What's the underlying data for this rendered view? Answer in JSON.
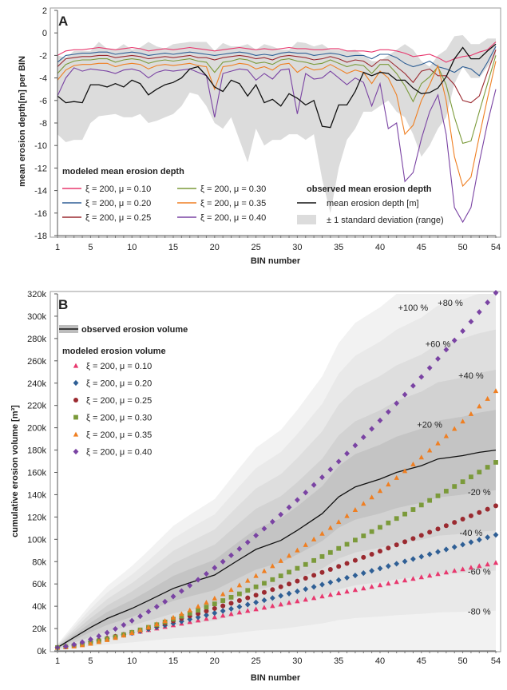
{
  "colors": {
    "mu010": "#e8386e",
    "mu020": "#2f5f95",
    "mu025": "#9b2a30",
    "mu030": "#7b9a3a",
    "mu035": "#ef7f22",
    "mu040": "#7a43a3",
    "observed": "#111111",
    "band": "#dcdcdc"
  },
  "chart_data": [
    {
      "type": "line",
      "panel_label": "A",
      "ylabel": "mean erosion depth[m] per BIN",
      "xlabel": "BIN number",
      "xlim": [
        1,
        54
      ],
      "ylim": [
        -18,
        2
      ],
      "y_ticks": [
        2,
        0,
        -2,
        -4,
        -6,
        -8,
        -10,
        -12,
        -14,
        -16,
        -18
      ],
      "x_ticks": [
        1,
        5,
        10,
        15,
        20,
        25,
        30,
        35,
        40,
        45,
        50,
        54
      ],
      "grid": false,
      "legend": {
        "modeled_title": "modeled mean erosion depth",
        "observed_title": "observed mean erosion depth"
      },
      "x": [
        1,
        2,
        3,
        4,
        5,
        6,
        7,
        8,
        9,
        10,
        11,
        12,
        13,
        14,
        15,
        16,
        17,
        18,
        19,
        20,
        21,
        22,
        23,
        24,
        25,
        26,
        27,
        28,
        29,
        30,
        31,
        32,
        33,
        34,
        35,
        36,
        37,
        38,
        39,
        40,
        41,
        42,
        43,
        44,
        45,
        46,
        47,
        48,
        49,
        50,
        51,
        52,
        53,
        54
      ],
      "series": [
        {
          "name": "ξ = 200, μ = 0.10",
          "color_key": "mu010",
          "values": [
            -2.0,
            -1.6,
            -1.5,
            -1.5,
            -1.4,
            -1.3,
            -1.4,
            -1.5,
            -1.4,
            -1.3,
            -1.4,
            -1.6,
            -1.5,
            -1.4,
            -1.5,
            -1.4,
            -1.3,
            -1.4,
            -1.5,
            -1.6,
            -1.5,
            -1.4,
            -1.3,
            -1.4,
            -1.5,
            -1.4,
            -1.5,
            -1.4,
            -1.3,
            -1.4,
            -1.4,
            -1.5,
            -1.5,
            -1.4,
            -1.4,
            -1.6,
            -1.6,
            -1.6,
            -1.7,
            -1.5,
            -1.5,
            -1.6,
            -1.8,
            -2.1,
            -2.0,
            -1.9,
            -2.2,
            -2.6,
            -2.3,
            -2.1,
            -2.0,
            -1.7,
            -1.5,
            -0.8
          ]
        },
        {
          "name": "ξ = 200, μ = 0.20",
          "color_key": "mu020",
          "values": [
            -2.6,
            -2.0,
            -1.9,
            -1.8,
            -1.8,
            -1.7,
            -1.7,
            -1.9,
            -1.8,
            -1.7,
            -1.8,
            -2.0,
            -1.9,
            -1.8,
            -1.9,
            -1.8,
            -1.7,
            -1.8,
            -1.9,
            -2.0,
            -1.9,
            -1.8,
            -1.7,
            -1.8,
            -2.0,
            -1.9,
            -2.0,
            -1.8,
            -1.7,
            -1.8,
            -1.8,
            -2.0,
            -1.9,
            -1.8,
            -1.9,
            -2.1,
            -2.0,
            -2.0,
            -2.3,
            -1.9,
            -1.9,
            -2.2,
            -2.7,
            -3.0,
            -2.8,
            -2.5,
            -3.0,
            -3.2,
            -3.5,
            -3.0,
            -3.2,
            -3.8,
            -2.6,
            -1.2
          ]
        },
        {
          "name": "ξ = 200, μ = 0.25",
          "color_key": "mu025",
          "values": [
            -3.0,
            -2.3,
            -2.2,
            -2.1,
            -2.1,
            -2.0,
            -2.0,
            -2.2,
            -2.1,
            -2.0,
            -2.1,
            -2.3,
            -2.2,
            -2.1,
            -2.2,
            -2.1,
            -2.0,
            -2.2,
            -2.2,
            -2.4,
            -2.2,
            -2.1,
            -2.0,
            -2.1,
            -2.3,
            -2.2,
            -2.4,
            -2.1,
            -2.0,
            -2.1,
            -2.2,
            -2.4,
            -2.3,
            -2.1,
            -2.3,
            -2.6,
            -2.4,
            -2.5,
            -3.0,
            -2.4,
            -2.4,
            -3.0,
            -3.6,
            -4.4,
            -3.4,
            -3.2,
            -3.8,
            -3.8,
            -4.6,
            -6.0,
            -6.2,
            -5.6,
            -3.5,
            -1.5
          ]
        },
        {
          "name": "ξ = 200, μ = 0.30",
          "color_key": "mu030",
          "values": [
            -3.6,
            -2.8,
            -2.5,
            -2.4,
            -2.4,
            -2.3,
            -2.3,
            -2.6,
            -2.4,
            -2.3,
            -2.4,
            -2.7,
            -2.5,
            -2.4,
            -2.5,
            -2.4,
            -2.3,
            -2.5,
            -2.6,
            -3.5,
            -2.6,
            -2.5,
            -2.3,
            -2.4,
            -2.7,
            -2.6,
            -2.8,
            -2.4,
            -2.3,
            -2.5,
            -2.6,
            -2.8,
            -2.7,
            -2.4,
            -2.7,
            -3.0,
            -2.8,
            -2.9,
            -3.6,
            -2.8,
            -2.8,
            -3.6,
            -4.7,
            -6.1,
            -4.5,
            -3.9,
            -3.0,
            -4.6,
            -7.5,
            -9.8,
            -9.6,
            -7.0,
            -4.5,
            -2.0
          ]
        },
        {
          "name": "ξ = 200, μ = 0.35",
          "color_key": "mu035",
          "values": [
            -4.2,
            -3.3,
            -2.9,
            -2.8,
            -2.8,
            -2.7,
            -2.7,
            -3.0,
            -2.8,
            -2.7,
            -2.8,
            -3.2,
            -2.9,
            -2.8,
            -2.9,
            -2.8,
            -2.7,
            -2.9,
            -3.0,
            -5.0,
            -3.0,
            -2.9,
            -2.7,
            -2.8,
            -3.2,
            -3.0,
            -3.3,
            -2.8,
            -2.7,
            -3.5,
            -3.0,
            -3.3,
            -3.2,
            -2.8,
            -3.2,
            -3.6,
            -3.3,
            -3.5,
            -4.5,
            -3.4,
            -4.0,
            -5.5,
            -9.0,
            -8.2,
            -6.0,
            -4.6,
            -2.9,
            -6.0,
            -11.0,
            -13.6,
            -12.8,
            -9.2,
            -5.8,
            -2.5
          ]
        },
        {
          "name": "ξ = 200, μ = 0.40",
          "color_key": "mu040",
          "values": [
            -5.6,
            -4.0,
            -3.1,
            -3.4,
            -3.2,
            -3.3,
            -3.4,
            -3.6,
            -3.3,
            -3.2,
            -3.4,
            -4.0,
            -3.5,
            -3.3,
            -3.4,
            -3.3,
            -3.2,
            -3.5,
            -3.8,
            -7.5,
            -3.6,
            -3.4,
            -3.2,
            -3.3,
            -4.2,
            -3.6,
            -4.1,
            -3.3,
            -3.2,
            -7.2,
            -3.6,
            -4.1,
            -4.0,
            -3.4,
            -4.0,
            -4.6,
            -4.0,
            -4.4,
            -6.5,
            -4.5,
            -8.5,
            -8.0,
            -13.2,
            -12.4,
            -9.4,
            -7.0,
            -5.5,
            -9.0,
            -15.5,
            -16.8,
            -15.5,
            -11.5,
            -8.0,
            -5.0
          ]
        },
        {
          "name": "mean erosion depth [m]",
          "color_key": "observed",
          "values": [
            -5.6,
            -6.2,
            -6.1,
            -6.2,
            -4.6,
            -4.6,
            -4.8,
            -4.5,
            -4.8,
            -4.2,
            -4.5,
            -5.5,
            -5.0,
            -4.6,
            -4.4,
            -4.0,
            -3.2,
            -3.0,
            -3.8,
            -4.8,
            -5.2,
            -4.2,
            -4.5,
            -5.6,
            -4.6,
            -6.2,
            -5.9,
            -6.5,
            -5.4,
            -5.8,
            -6.4,
            -6.0,
            -8.3,
            -8.4,
            -6.4,
            -6.4,
            -5.2,
            -3.5,
            -3.8,
            -3.5,
            -3.6,
            -4.2,
            -4.2,
            -4.9,
            -5.4,
            -5.3,
            -4.9,
            -3.9,
            -2.3,
            -1.3,
            -2.3,
            -2.3,
            -1.6,
            -1.0
          ]
        }
      ],
      "std_band": {
        "name": "± 1 standard deviation (range)",
        "upper": [
          -2.0,
          -2.2,
          -1.6,
          -1.6,
          -1.6,
          -0.8,
          -1.4,
          -1.5,
          -1.0,
          -1.5,
          -1.3,
          -0.8,
          -1.2,
          -1.4,
          -1.0,
          -0.9,
          -0.8,
          -0.8,
          -0.8,
          -1.6,
          -0.9,
          -1.2,
          -1.2,
          -1.0,
          -1.5,
          -1.0,
          -1.2,
          -1.5,
          -1.5,
          -0.8,
          -0.9,
          -1.2,
          -1.0,
          -1.5,
          -1.5,
          -1.6,
          -1.5,
          -2.0,
          -2.5,
          -2.5,
          -2.0,
          -1.5,
          -1.0,
          -1.5,
          -2.5,
          -3.0,
          -2.0,
          -1.5,
          -0.3,
          -0.2,
          -1.0,
          -1.0,
          -0.5,
          -0.5
        ],
        "lower": [
          -9.0,
          -9.7,
          -9.5,
          -9.5,
          -8.0,
          -7.4,
          -7.3,
          -7.2,
          -7.5,
          -7.5,
          -7.2,
          -8.0,
          -7.8,
          -7.5,
          -7.2,
          -6.5,
          -5.3,
          -5.5,
          -6.5,
          -8.0,
          -8.5,
          -7.5,
          -9.5,
          -11.5,
          -8.5,
          -10.0,
          -9.5,
          -9.5,
          -9.0,
          -9.0,
          -9.5,
          -9.0,
          -13.0,
          -16.0,
          -12.0,
          -9.5,
          -8.5,
          -7.0,
          -7.0,
          -6.5,
          -6.0,
          -7.0,
          -7.5,
          -9.0,
          -11.0,
          -10.0,
          -8.5,
          -7.5,
          -4.5,
          -3.0,
          -4.0,
          -4.0,
          -3.0,
          -2.0
        ]
      }
    },
    {
      "type": "scatter",
      "panel_label": "B",
      "ylabel": "cumulative erosion volume [m³]",
      "xlabel": "BIN number",
      "xlim": [
        1,
        54
      ],
      "ylim": [
        0,
        320000
      ],
      "y_ticks": [
        0,
        20000,
        40000,
        60000,
        80000,
        100000,
        120000,
        140000,
        160000,
        180000,
        200000,
        220000,
        240000,
        260000,
        280000,
        300000,
        320000
      ],
      "y_tick_labels": [
        "0k",
        "20k",
        "40k",
        "60k",
        "80k",
        "100k",
        "120k",
        "140k",
        "160k",
        "180k",
        "200k",
        "220k",
        "240k",
        "260k",
        "280k",
        "300k",
        "320k"
      ],
      "x_ticks": [
        1,
        5,
        10,
        15,
        20,
        25,
        30,
        35,
        40,
        45,
        50,
        54
      ],
      "grid": false,
      "legend": {
        "observed": "observed erosion volume",
        "modeled_title": "modeled erosion volume"
      },
      "band_labels": [
        "+100 %",
        "+80 %",
        "+60 %",
        "+40 %",
        "+20 %",
        "-20 %",
        "-40 %",
        "-60 %",
        "-80 %"
      ],
      "band_factors": [
        2.0,
        1.8,
        1.6,
        1.4,
        1.2,
        0.8,
        0.6,
        0.4,
        0.2
      ],
      "observed": {
        "name": "observed erosion volume",
        "x": [
          1,
          3,
          5,
          7,
          10,
          12,
          15,
          17,
          20,
          23,
          25,
          28,
          30,
          33,
          35,
          37,
          40,
          42,
          45,
          47,
          50,
          52,
          54
        ],
        "values": [
          3000,
          12000,
          21000,
          29000,
          38000,
          45000,
          56000,
          61000,
          68000,
          82000,
          91000,
          99000,
          108000,
          123000,
          138000,
          147000,
          154000,
          160000,
          166000,
          172000,
          175000,
          178000,
          180000
        ]
      },
      "modeled": [
        {
          "name": "ξ = 200, μ = 0.10",
          "color_key": "mu010",
          "marker": "triangle",
          "end": 79000,
          "curve": 1.0
        },
        {
          "name": "ξ = 200, μ = 0.20",
          "color_key": "mu020",
          "marker": "diamond",
          "end": 104000,
          "curve": 1.15
        },
        {
          "name": "ξ = 200, μ = 0.25",
          "color_key": "mu025",
          "marker": "circle",
          "end": 130000,
          "curve": 1.25
        },
        {
          "name": "ξ = 200, μ = 0.30",
          "color_key": "mu030",
          "marker": "square",
          "end": 169000,
          "curve": 1.4
        },
        {
          "name": "ξ = 200, μ = 0.35",
          "color_key": "mu035",
          "marker": "triangle",
          "end": 233000,
          "curve": 1.6
        },
        {
          "name": "ξ = 200, μ = 0.40",
          "color_key": "mu040",
          "marker": "diamond",
          "end": 321000,
          "curve": 1.45
        }
      ]
    }
  ]
}
